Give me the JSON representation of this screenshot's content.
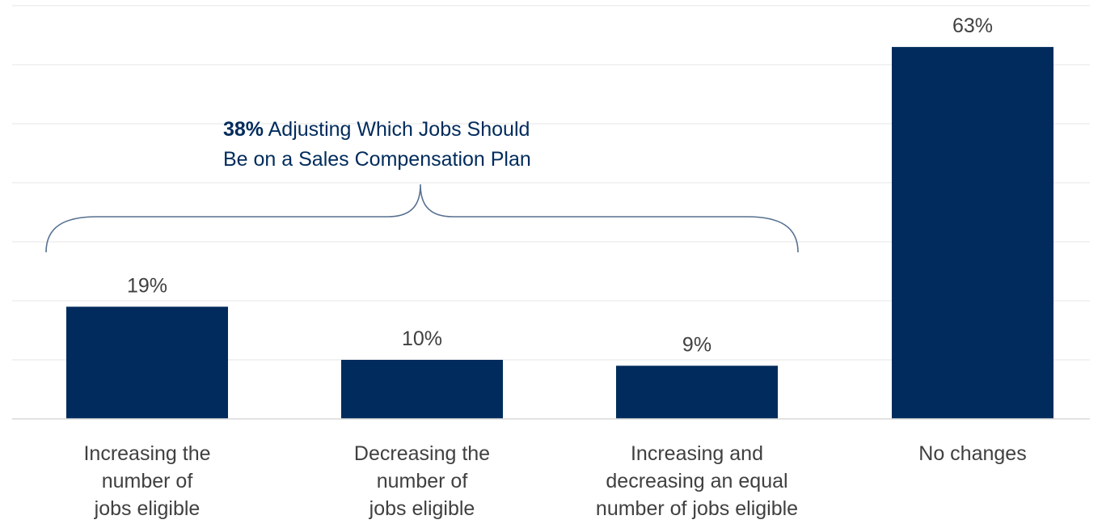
{
  "chart_data": {
    "type": "bar",
    "categories": [
      [
        "Increasing the",
        "number of",
        "jobs eligible"
      ],
      [
        "Decreasing the",
        "number of",
        "jobs eligible"
      ],
      [
        "Increasing and",
        "decreasing an equal",
        "number of jobs eligible"
      ],
      [
        "No changes"
      ]
    ],
    "values": [
      19,
      10,
      9,
      63
    ],
    "value_labels": [
      "19%",
      "10%",
      "9%",
      "63%"
    ],
    "ylim": [
      0,
      70
    ],
    "grid": true,
    "bar_color": "#002b5c",
    "annotation": {
      "bold": "38%",
      "lines": [
        " Adjusting Which Jobs Should",
        "Be on a Sales Compensation Plan"
      ],
      "spans_categories": [
        0,
        1,
        2
      ],
      "color": "#002b5c"
    }
  }
}
